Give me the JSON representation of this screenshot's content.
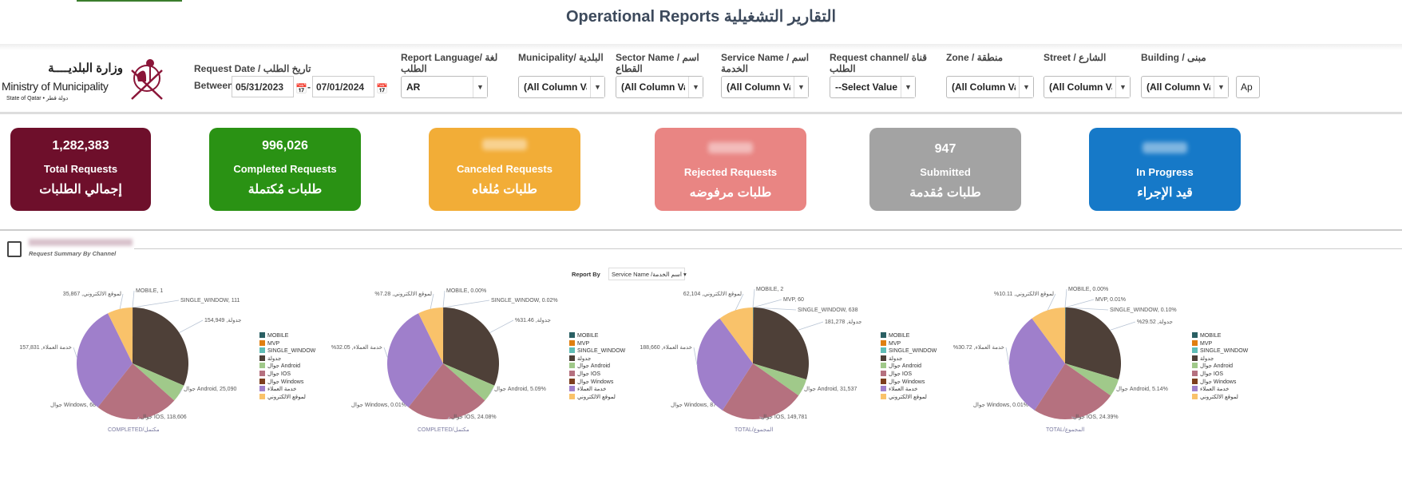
{
  "header": {
    "title": "Operational Reports التقارير التشغيلية"
  },
  "logo": {
    "arabic": "وزارة البلديــــة",
    "english": "Ministry of Municipality",
    "state": "State of Qatar • دولة قطر"
  },
  "filters": {
    "request_date": {
      "label": "Request Date / تاريخ الطلب",
      "between": "Between",
      "from": "05/31/2023",
      "to": "07/01/2024"
    },
    "report_language": {
      "label": "Report Language/ لغة الطلب",
      "value": "AR"
    },
    "municipality": {
      "label": "Municipality/ البلدية",
      "value": "(All Column Values)"
    },
    "sector": {
      "label": "Sector Name / اسم القطاع",
      "value": "(All Column Values)"
    },
    "service": {
      "label": "Service Name / اسم الخدمة",
      "value": "(All Column Values)"
    },
    "channel": {
      "label": "Request channel/ قناة الطلب",
      "value": "--Select Value--"
    },
    "zone": {
      "label": "Zone / منطقة",
      "value": "(All Column Values)"
    },
    "street": {
      "label": "Street / الشارع",
      "value": "(All Column Values)"
    },
    "building": {
      "label": "Building / مبنى",
      "value": "(All Column Values)"
    },
    "apply_label": "Ap"
  },
  "kpis": [
    {
      "value": "1,282,383",
      "en": "Total Requests",
      "ar": "إجمالي الطلبات",
      "color": "#6e0f2b"
    },
    {
      "value": "996,026",
      "en": "Completed Requests",
      "ar": "طلبات مُكتملة",
      "color": "#2a9214"
    },
    {
      "value": null,
      "en": "Canceled Requests",
      "ar": "طلبات مُلغاه",
      "color": "#f2ad37"
    },
    {
      "value": null,
      "en": "Rejected Requests",
      "ar": "طلبات مرفوضه",
      "color": "#e98583"
    },
    {
      "value": "947",
      "en": "Submitted",
      "ar": "طلبات مُقدمة",
      "color": "#a3a3a3"
    },
    {
      "value": null,
      "en": "In Progress",
      "ar": "قيد الإجراء",
      "color": "#1679c8"
    }
  ],
  "section": {
    "subtitle": "Request Summary By Channel",
    "report_by_label": "Report By",
    "report_by_value": "Service Name /اسم الخدمة"
  },
  "chart_data": [
    {
      "type": "pie",
      "caption": "COMPLETED/مكتمل",
      "format": "count",
      "categories": [
        "MOBILE",
        "MVP",
        "SINGLE_WINDOW",
        "جدولة",
        "جوال Android",
        "جوال IOS",
        "جوال Windows",
        "خدمة العملاء",
        "لموقع الالكتروني"
      ],
      "values": [
        1,
        0,
        111,
        154949,
        25090,
        118606,
        68,
        157831,
        35867
      ],
      "labels": [
        "MOBILE, 1",
        null,
        "SINGLE_WINDOW, 111",
        "جدولة, 154,949",
        "جوال Android, 25,090",
        "جوال IOS, 118,606",
        "جوال Windows, 68",
        "خدمة العملاء, 157,831",
        "لموقع الالكتروني, 35,867"
      ]
    },
    {
      "type": "pie",
      "caption": "COMPLETED/مكتمل",
      "format": "percent",
      "categories": [
        "MOBILE",
        "MVP",
        "SINGLE_WINDOW",
        "جدولة",
        "جوال Android",
        "جوال IOS",
        "جوال Windows",
        "خدمة العملاء",
        "لموقع الالكتروني"
      ],
      "values": [
        0.0,
        0,
        0.02,
        31.46,
        5.09,
        24.08,
        0.01,
        32.05,
        7.28
      ],
      "labels": [
        "MOBILE, 0.00%",
        null,
        "SINGLE_WINDOW, 0.02%",
        "%جدولة, 31.46",
        "جوال Android, 5.09%",
        "جوال IOS, 24.08%",
        "جوال Windows, 0.01%",
        "%خدمة العملاء, 32.05",
        "%لموقع الالكتروني, 7.28"
      ]
    },
    {
      "type": "pie",
      "caption": "TOTAL/المجموع",
      "format": "count",
      "categories": [
        "MOBILE",
        "MVP",
        "SINGLE_WINDOW",
        "جدولة",
        "جوال Android",
        "جوال IOS",
        "جوال Windows",
        "خدمة العملاء",
        "لموقع الالكتروني"
      ],
      "values": [
        2,
        60,
        638,
        181278,
        31537,
        149781,
        87,
        188660,
        62104
      ],
      "labels": [
        "MOBILE, 2",
        "MVP, 60",
        "SINGLE_WINDOW, 638",
        "جدولة, 181,278",
        "جوال Android, 31,537",
        "جوال IOS, 149,781",
        "جوال Windows, 87",
        "خدمة العملاء, 188,660",
        "لموقع الالكتروني, 62,104"
      ]
    },
    {
      "type": "pie",
      "caption": "TOTAL/المجموع",
      "format": "percent",
      "categories": [
        "MOBILE",
        "MVP",
        "SINGLE_WINDOW",
        "جدولة",
        "جوال Android",
        "جوال IOS",
        "جوال Windows",
        "خدمة العملاء",
        "لموقع الالكتروني"
      ],
      "values": [
        0.0,
        0.01,
        0.1,
        29.52,
        5.14,
        24.39,
        0.01,
        30.72,
        10.11
      ],
      "labels": [
        "MOBILE, 0.00%",
        "MVP, 0.01%",
        "SINGLE_WINDOW, 0.10%",
        "%جدولة, 29.52",
        "جوال Android, 5.14%",
        "جوال IOS, 24.39%",
        "جوال Windows, 0.01%",
        "%خدمة العملاء, 30.72",
        "%لموقع الالكتروني, 10.11"
      ]
    }
  ],
  "series_colors": [
    "#2a5f63",
    "#e07f10",
    "#5fbdb6",
    "#4e4038",
    "#a0c98a",
    "#b5717f",
    "#7d3f1e",
    "#9f7fcb",
    "#f9c26a"
  ]
}
